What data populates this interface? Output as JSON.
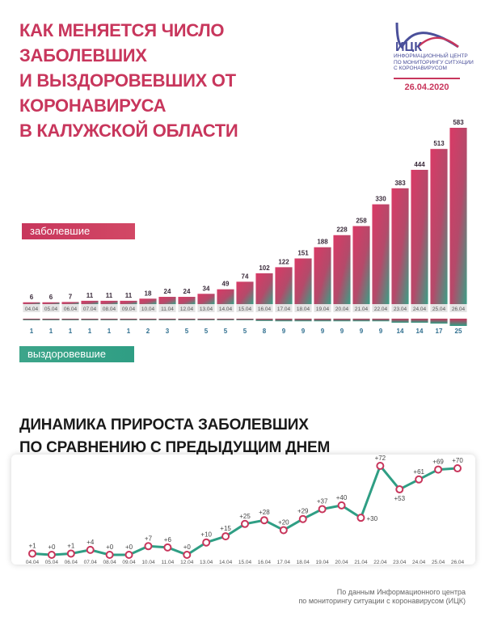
{
  "header": {
    "title_lines": [
      "КАК МЕНЯЕТСЯ ЧИСЛО ЗАБОЛЕВШИХ",
      "И ВЫЗДОРОВЕВШИХ ОТ КОРОНАВИРУСА",
      "В КАЛУЖСКОЙ ОБЛАСТИ"
    ],
    "logo_abbr": "ИЦК",
    "logo_text_lines": [
      "Информационный центр",
      "по мониторингу ситуации",
      "с коронавирусом"
    ],
    "date": "26.04.2020"
  },
  "legend": {
    "sick_label": "заболевшие",
    "recovered_label": "выздоровевшие"
  },
  "section2": {
    "title_lines": [
      "ДИНАМИКА ПРИРОСТА ЗАБОЛЕВШИХ",
      "ПО СРАВНЕНИЮ С ПРЕДЫДУЩИМ ДНЕМ"
    ]
  },
  "source_lines": [
    "По данным Информационного центра",
    "по мониторингу ситуации с коронавирусом (ИЦК)"
  ],
  "colors": {
    "sick": "#c8365c",
    "sick_alt": "#e0476a",
    "recovered": "#2f9e84",
    "line": "#2f9e84",
    "marker": "#c8365c"
  },
  "chart_data": [
    {
      "type": "bar",
      "title": "Как меняется число заболевших и выздоровевших от коронавируса в Калужской области",
      "categories": [
        "04.04",
        "05.04",
        "06.04",
        "07.04",
        "08.04",
        "09.04",
        "10.04",
        "11.04",
        "12.04",
        "13.04",
        "14.04",
        "15.04",
        "16.04",
        "17.04",
        "18.04",
        "19.04",
        "20.04",
        "21.04",
        "22.04",
        "23.04",
        "24.04",
        "25.04",
        "26.04"
      ],
      "series": [
        {
          "name": "заболевшие",
          "values": [
            6,
            6,
            7,
            11,
            11,
            11,
            18,
            24,
            24,
            34,
            49,
            74,
            102,
            122,
            151,
            188,
            228,
            258,
            330,
            383,
            444,
            513,
            583
          ]
        },
        {
          "name": "выздоровевшие",
          "values": [
            1,
            1,
            1,
            1,
            1,
            1,
            2,
            3,
            5,
            5,
            5,
            5,
            8,
            9,
            9,
            9,
            9,
            9,
            9,
            14,
            14,
            17,
            25
          ]
        }
      ],
      "ylim": [
        0,
        583
      ]
    },
    {
      "type": "line",
      "title": "Динамика прироста заболевших по сравнению с предыдущим днем",
      "categories": [
        "04.04",
        "05.04",
        "06.04",
        "07.04",
        "08.04",
        "09.04",
        "10.04",
        "11.04",
        "12.04",
        "13.04",
        "14.04",
        "15.04",
        "16.04",
        "17.04",
        "18.04",
        "19.04",
        "20.04",
        "21.04",
        "22.04",
        "23.04",
        "24.04",
        "25.04",
        "26.04"
      ],
      "values": [
        1,
        0,
        1,
        4,
        0,
        0,
        7,
        6,
        0,
        10,
        15,
        25,
        28,
        20,
        29,
        37,
        40,
        30,
        72,
        53,
        61,
        69,
        70
      ],
      "labels": [
        "+1",
        "+0",
        "+1",
        "+4",
        "+0",
        "+0",
        "+7",
        "+6",
        "+0",
        "+10",
        "+15",
        "+25",
        "+28",
        "+20",
        "+29",
        "+37",
        "+40",
        "+30",
        "+72",
        "+53",
        "+61",
        "+69",
        "+70"
      ],
      "ylim": [
        0,
        72
      ]
    }
  ]
}
